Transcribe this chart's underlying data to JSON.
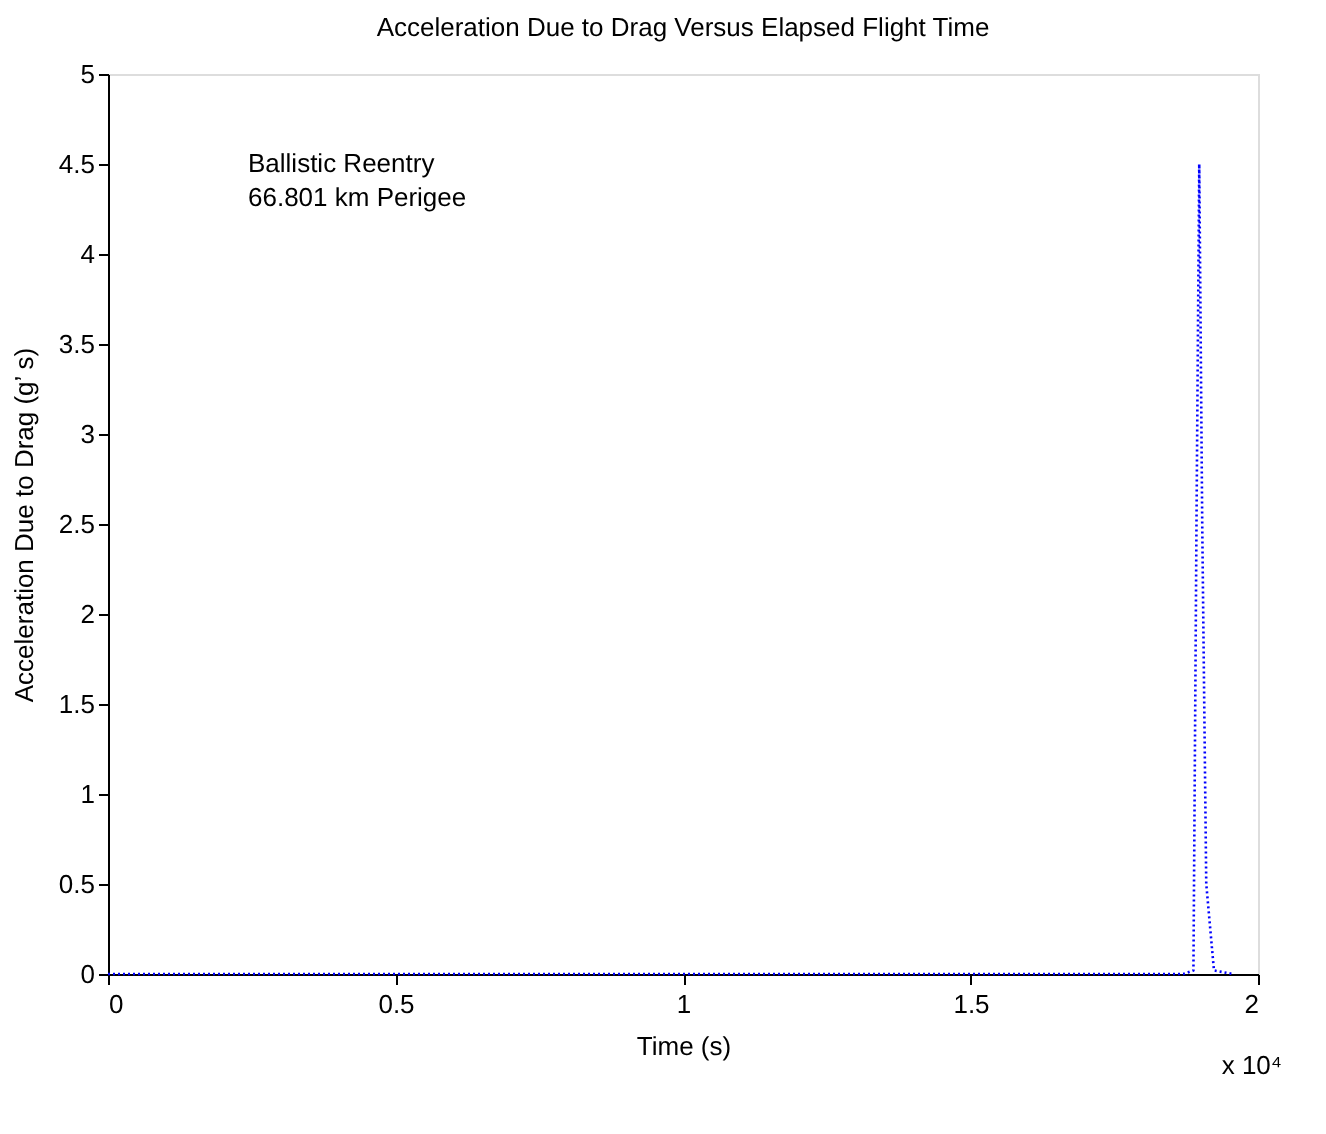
{
  "chart_data": {
    "type": "line",
    "title": "Acceleration Due to Drag Versus Elapsed Flight Time",
    "xlabel": "Time (s)",
    "ylabel": "Acceleration Due to Drag (g’ s)",
    "x": [
      0,
      0.5,
      1,
      1.5,
      1.87,
      1.8877,
      1.893,
      1.8978,
      1.903,
      1.91,
      1.9234,
      1.9562
    ],
    "series": [
      {
        "color": "#0000ff",
        "values": [
          0,
          0,
          0,
          0,
          0,
          0.02,
          2.5,
          4.5,
          2.5,
          0.5,
          0.02,
          0
        ]
      }
    ],
    "xlim": [
      0,
      2
    ],
    "ylim": [
      0,
      5
    ],
    "xticks": [
      0,
      0.5,
      1,
      1.5,
      2
    ],
    "yticks": [
      0,
      0.5,
      1,
      1.5,
      2,
      2.5,
      3,
      3.5,
      4,
      4.5,
      5
    ],
    "annotations": [
      "Ballistic Reentry",
      "66.801 km Perigee",
      "x 10⁴"
    ],
    "grid": false,
    "line_style": "dotted",
    "marker": "none"
  }
}
